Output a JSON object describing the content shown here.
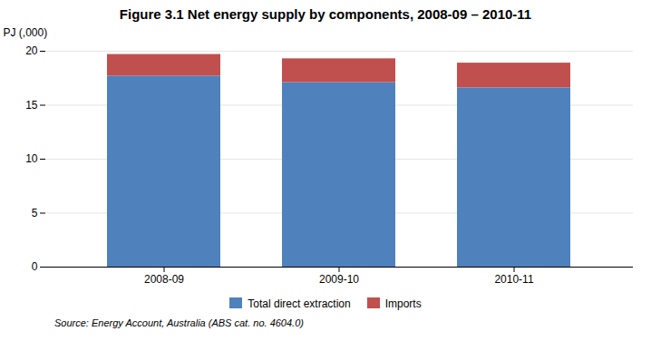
{
  "chart_data": {
    "type": "bar",
    "stacked": true,
    "title": "Figure 3.1 Net energy supply by components, 2008-09 – 2010-11",
    "y_label": "PJ (,000)",
    "categories": [
      "2008-09",
      "2009-10",
      "2010-11"
    ],
    "series": [
      {
        "name": "Total direct extraction",
        "color": "#4F81BD",
        "values": [
          17.7,
          17.1,
          16.6
        ]
      },
      {
        "name": "Imports",
        "color": "#C0504D",
        "values": [
          2.0,
          2.2,
          2.3
        ]
      }
    ],
    "ylim": [
      0,
      20
    ],
    "yticks": [
      0,
      5,
      10,
      15,
      20
    ],
    "grid": true,
    "legend": "bottom",
    "annotations": [
      "Source: Energy Account, Australia (ABS cat. no. 4604.0)"
    ]
  }
}
